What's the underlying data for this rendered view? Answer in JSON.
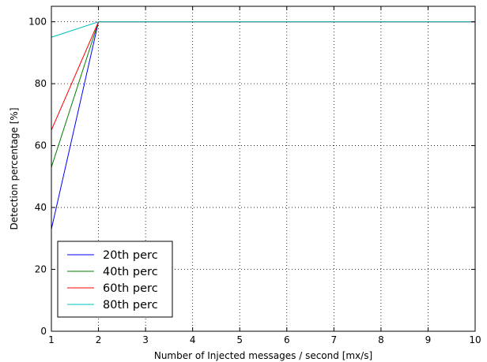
{
  "chart_data": {
    "type": "line",
    "title": "",
    "xlabel": "Number of Injected messages / second [mx/s]",
    "ylabel": "Detection percentage [%]",
    "xlim": [
      1,
      10
    ],
    "ylim": [
      0,
      105
    ],
    "xticks": [
      "1",
      "2",
      "3",
      "4",
      "5",
      "6",
      "7",
      "8",
      "9",
      "10"
    ],
    "yticks": [
      "0",
      "20",
      "40",
      "60",
      "80",
      "100"
    ],
    "x": [
      1,
      2,
      3,
      4,
      5,
      6,
      7,
      8,
      9,
      10
    ],
    "grid": true,
    "legend_position": "lower-left",
    "series": [
      {
        "name": "20th perc",
        "color": "#0000ff",
        "values": [
          33,
          100,
          100,
          100,
          100,
          100,
          100,
          100,
          100,
          100
        ]
      },
      {
        "name": "40th perc",
        "color": "#008000",
        "values": [
          53,
          100,
          100,
          100,
          100,
          100,
          100,
          100,
          100,
          100
        ]
      },
      {
        "name": "60th perc",
        "color": "#ff0000",
        "values": [
          65,
          100,
          100,
          100,
          100,
          100,
          100,
          100,
          100,
          100
        ]
      },
      {
        "name": "80th perc",
        "color": "#00bfbf",
        "values": [
          95,
          100,
          100,
          100,
          100,
          100,
          100,
          100,
          100,
          100
        ]
      }
    ]
  }
}
